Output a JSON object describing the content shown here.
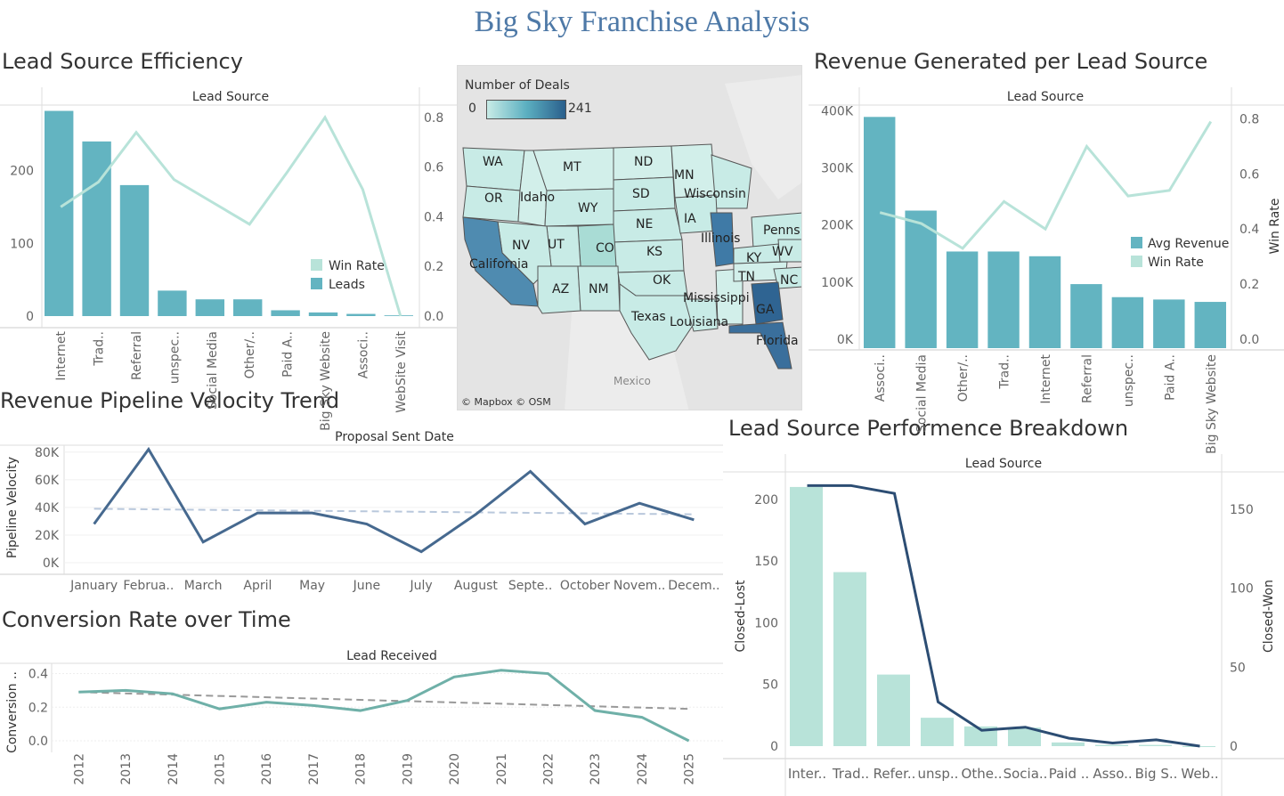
{
  "dashboard_title": "Big Sky Franchise Analysis",
  "colors": {
    "bar_teal": "#63b4c1",
    "line_mint": "#b8e3d9",
    "navy": "#46698f",
    "navy_line": "#2c4d73",
    "trend_line": "#6fb0a8",
    "map_dark": "#2a5f8c",
    "map_light": "#c8ebe6"
  },
  "panels": {
    "lead_source_efficiency": "Lead Source Efficiency",
    "revenue_per_lead_source": "Revenue Generated per Lead Source",
    "pipeline_velocity": "Revenue Pipeline Velocity Trend",
    "conversion_rate": "Conversion Rate over Time",
    "performance_breakdown": "Lead Source Performence Breakdown"
  },
  "map": {
    "legend_title": "Number of Deals",
    "legend_min": "0",
    "legend_max": "241",
    "credit": "© Mapbox © OSM",
    "country_label": "Mexico",
    "state_labels": [
      "WA",
      "OR",
      "Idaho",
      "MT",
      "WY",
      "ND",
      "SD",
      "NE",
      "MN",
      "Wisconsin",
      "IA",
      "Illinois",
      "Penns",
      "KS",
      "CO",
      "UT",
      "NV",
      "California",
      "AZ",
      "NM",
      "OK",
      "Texas",
      "Louisiana",
      "Mississippi",
      "TN",
      "KY",
      "WV",
      "NC",
      "GA",
      "Florida"
    ]
  },
  "chart_data": [
    {
      "id": "lead_source_efficiency",
      "type": "bar",
      "title": "Lead Source",
      "categories": [
        "Internet",
        "Trad..",
        "Referral",
        "unspec..",
        "Social Media",
        "Other/..",
        "Paid A..",
        "Big Sky Website",
        "Associ..",
        "WebSite Visit"
      ],
      "series": [
        {
          "name": "Leads",
          "type": "bar",
          "axis": "left",
          "values": [
            282,
            240,
            180,
            35,
            23,
            23,
            8,
            5,
            3,
            1
          ]
        },
        {
          "name": "Win Rate",
          "type": "line",
          "axis": "right",
          "values": [
            0.44,
            0.54,
            0.74,
            0.55,
            0.46,
            0.37,
            0.58,
            0.8,
            0.51,
            0.0
          ]
        }
      ],
      "y_left": {
        "ticks": [
          "0",
          "100",
          "200"
        ],
        "range": [
          0,
          290
        ]
      },
      "y_right": {
        "ticks": [
          "0.0",
          "0.2",
          "0.4",
          "0.6",
          "0.8"
        ],
        "range": [
          0,
          0.85
        ]
      },
      "legend": [
        "Win Rate",
        "Leads"
      ]
    },
    {
      "id": "revenue_per_lead_source",
      "type": "bar",
      "title": "Lead Source",
      "categories": [
        "Associ..",
        "Social Media",
        "Other/..",
        "Trad..",
        "Internet",
        "Referral",
        "unspec..",
        "Paid A..",
        "Big Sky Website"
      ],
      "series": [
        {
          "name": "Avg Revenue",
          "type": "bar",
          "axis": "left",
          "values": [
            390000,
            232000,
            163000,
            163000,
            155000,
            108000,
            86000,
            82000,
            78000
          ]
        },
        {
          "name": "Win Rate",
          "type": "line",
          "axis": "right",
          "values": [
            0.46,
            0.42,
            0.33,
            0.5,
            0.4,
            0.7,
            0.52,
            0.54,
            0.79
          ]
        }
      ],
      "y_left": {
        "ticks": [
          "0K",
          "100K",
          "200K",
          "300K",
          "400K"
        ],
        "range": [
          0,
          410000
        ]
      },
      "y_right": {
        "label": "Win Rate",
        "ticks": [
          "0.0",
          "0.2",
          "0.4",
          "0.6",
          "0.8"
        ],
        "range": [
          0,
          0.85
        ]
      },
      "legend": [
        "Avg Revenue",
        "Win Rate"
      ]
    },
    {
      "id": "pipeline_velocity",
      "type": "line",
      "title": "Proposal Sent Date",
      "categories": [
        "January",
        "Februa..",
        "March",
        "April",
        "May",
        "June",
        "July",
        "August",
        "Septe..",
        "October",
        "Novem..",
        "Decem.."
      ],
      "series": [
        {
          "name": "Pipeline Velocity",
          "values": [
            28000,
            82000,
            15000,
            36000,
            36000,
            28000,
            8000,
            35000,
            66000,
            28000,
            43000,
            31000
          ]
        }
      ],
      "trend": [
        39000,
        35000
      ],
      "ylabel": "Pipeline Velocity",
      "y_ticks": [
        "0K",
        "20K",
        "40K",
        "60K",
        "80K"
      ],
      "ylim": [
        0,
        85000
      ]
    },
    {
      "id": "conversion_rate",
      "type": "line",
      "title": "Lead Received",
      "categories": [
        "2012",
        "2013",
        "2014",
        "2015",
        "2016",
        "2017",
        "2018",
        "2019",
        "2020",
        "2021",
        "2022",
        "2023",
        "2024",
        "2025"
      ],
      "series": [
        {
          "name": "Conversion ..",
          "values": [
            0.29,
            0.3,
            0.28,
            0.19,
            0.23,
            0.21,
            0.18,
            0.24,
            0.38,
            0.42,
            0.4,
            0.18,
            0.14,
            0.0
          ]
        }
      ],
      "trend": [
        0.29,
        0.19
      ],
      "ylabel": "Conversion ..",
      "y_ticks": [
        "0.0",
        "0.2",
        "0.4"
      ],
      "ylim": [
        0,
        0.44
      ]
    },
    {
      "id": "performance_breakdown",
      "type": "bar",
      "title": "Lead Source",
      "categories": [
        "Inter..",
        "Trad..",
        "Refer..",
        "unsp..",
        "Othe..",
        "Socia..",
        "Paid ..",
        "Asso..",
        "Big S..",
        "Web.."
      ],
      "series": [
        {
          "name": "Closed-Lost",
          "type": "bar",
          "axis": "left",
          "values": [
            210,
            141,
            58,
            23,
            16,
            15,
            3,
            1,
            1,
            0
          ]
        },
        {
          "name": "Closed-Won",
          "type": "line",
          "axis": "right",
          "values": [
            165,
            165,
            160,
            28,
            10,
            12,
            5,
            2,
            4,
            0
          ]
        }
      ],
      "y_left": {
        "label": "Closed-Lost",
        "ticks": [
          "0",
          "50",
          "100",
          "150",
          "200"
        ],
        "range": [
          0,
          215
        ]
      },
      "y_right": {
        "label": "Closed-Won",
        "ticks": [
          "0",
          "50",
          "100",
          "150"
        ],
        "range": [
          0,
          168
        ]
      }
    }
  ]
}
